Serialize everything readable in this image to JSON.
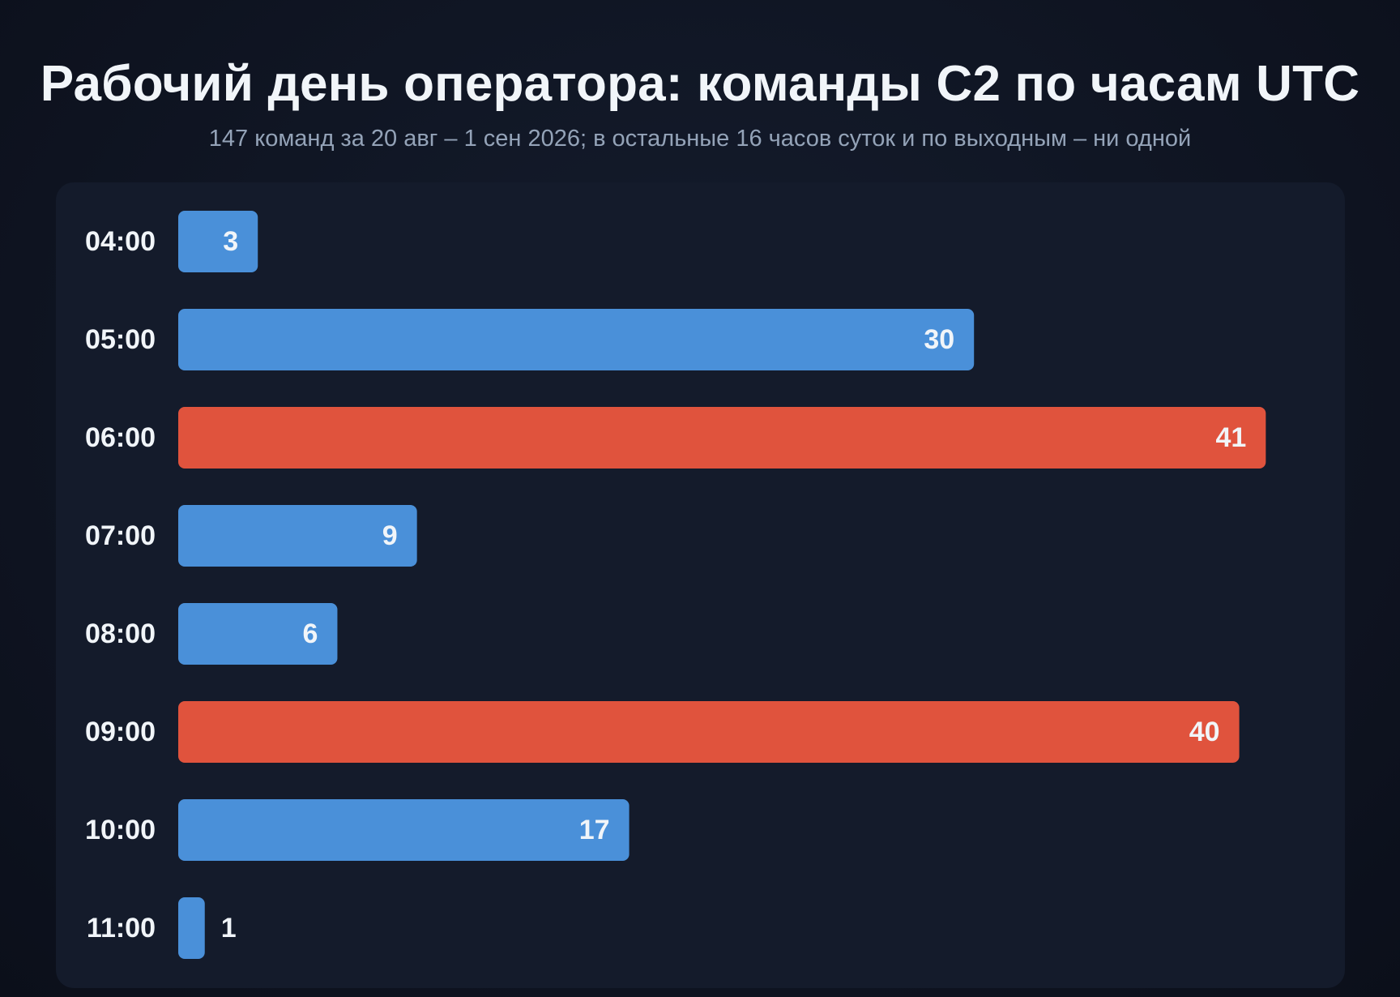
{
  "title": "Рабочий день оператора: команды C2 по часам UTC",
  "subtitle": "147 команд за 20 авг – 1 сен 2026; в остальные 16 часов суток и по выходным – ни одной",
  "colors": {
    "normal": "#4a90d9",
    "peak": "#e0533d",
    "label": "#f1f5f9",
    "panel": "#141b2b"
  },
  "chart_data": {
    "type": "bar",
    "orientation": "horizontal",
    "categories": [
      "04:00",
      "05:00",
      "06:00",
      "07:00",
      "08:00",
      "09:00",
      "10:00",
      "11:00"
    ],
    "values": [
      3,
      30,
      41,
      9,
      6,
      40,
      17,
      1
    ],
    "highlighted": [
      "06:00",
      "09:00"
    ],
    "title": "Рабочий день оператора: команды C2 по часам UTC",
    "xlabel": "",
    "ylabel": "",
    "grid": false,
    "legend": "none"
  }
}
